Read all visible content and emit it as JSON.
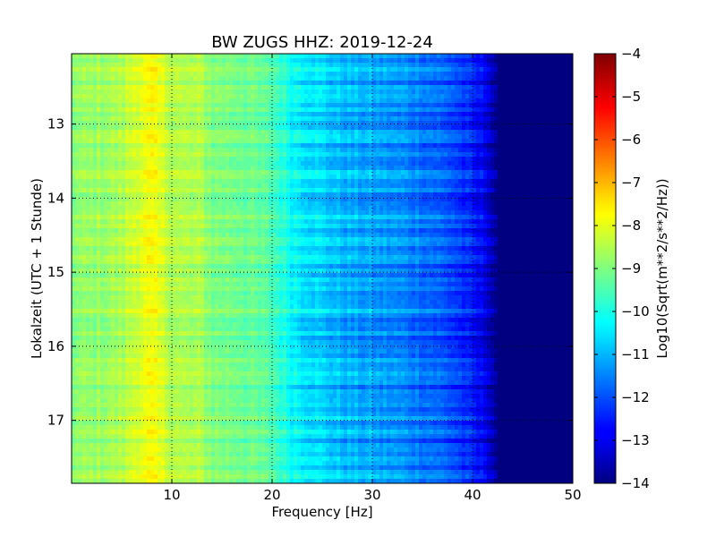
{
  "chart_data": {
    "type": "heatmap",
    "title": "BW ZUGS HHZ: 2019-12-24",
    "xlabel": "Frequency [Hz]",
    "ylabel": "Lokalzeit (UTC + 1 Stunde)",
    "xlim": [
      0,
      50
    ],
    "ylim": [
      12.05,
      17.85
    ],
    "x_ticks": [
      10,
      20,
      30,
      40,
      50
    ],
    "y_ticks": [
      13,
      14,
      15,
      16,
      17
    ],
    "grid": true,
    "colormap": "jet",
    "colorbar": {
      "label": "Log10(Sqrt(m**2/s**2/Hz))",
      "range": [
        -14,
        -4
      ],
      "ticks": [
        -4,
        -5,
        -6,
        -7,
        -8,
        -9,
        -10,
        -11,
        -12,
        -13,
        -14
      ]
    },
    "frequency_profile": {
      "frequency_hz": [
        0,
        2,
        5,
        6.5,
        8,
        9.5,
        11,
        13,
        14,
        17,
        20,
        22,
        25,
        27,
        30,
        33,
        35,
        38,
        40,
        41.5,
        42.5,
        45,
        50
      ],
      "log10_psd": [
        -8.9,
        -8.8,
        -8.6,
        -8.1,
        -7.9,
        -8.3,
        -8.6,
        -8.6,
        -9.0,
        -9.1,
        -9.5,
        -10.2,
        -10.7,
        -11.0,
        -11.2,
        -11.4,
        -11.6,
        -12.0,
        -12.6,
        -13.0,
        -14.0,
        -14.0,
        -14.0
      ]
    }
  }
}
